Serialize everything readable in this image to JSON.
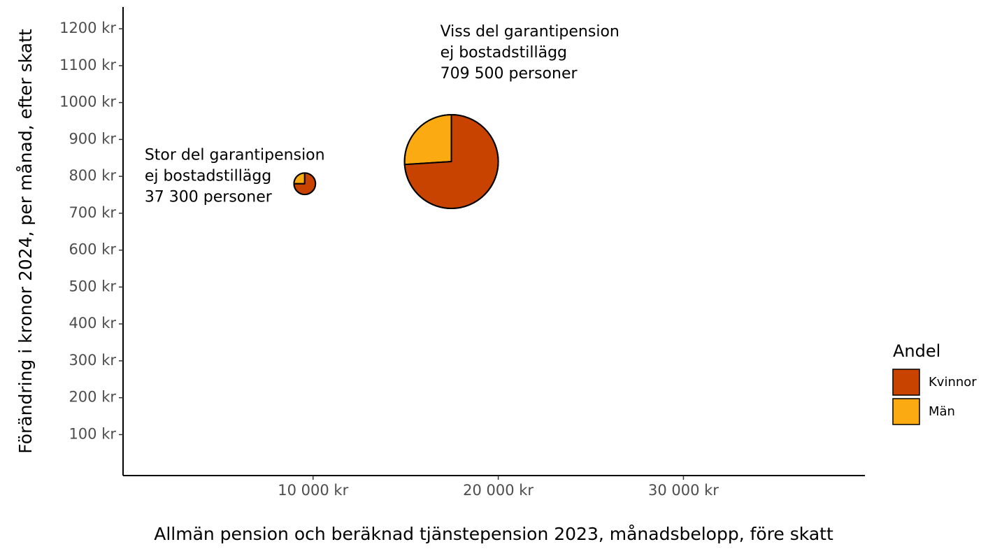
{
  "chart_data": {
    "type": "scatter",
    "xlabel": "Allmän pension och beräknad tjänstepension 2023, månadsbelopp, före skatt",
    "ylabel": "Förändring i kronor 2024, per månad, efter skatt",
    "x": [
      9550,
      17470
    ],
    "y": [
      780,
      840
    ],
    "sizes": [
      37300,
      709500
    ],
    "size_labels": [
      "37 300 personer",
      "709 500 personer"
    ],
    "annotations": [
      [
        "Stor del garantipension",
        "ej bostadstillägg"
      ],
      [
        "Viss del garantipension",
        "ej bostadstillägg"
      ]
    ],
    "series": [
      {
        "name": "Kvinnor",
        "color": "#c84300",
        "values": [
          75,
          74
        ]
      },
      {
        "name": "Män",
        "color": "#fcaa12",
        "values": [
          25,
          26
        ]
      }
    ],
    "legend_title": "Andel",
    "legend": "right",
    "xlim": [
      -260,
      39800
    ],
    "ylim": [
      -11,
      1259
    ],
    "xticks": [
      {
        "value": 10000,
        "label": "10 000 kr"
      },
      {
        "value": 20000,
        "label": "20 000 kr"
      },
      {
        "value": 30000,
        "label": "30 000 kr"
      }
    ],
    "yticks": [
      {
        "value": 100,
        "label": "100 kr"
      },
      {
        "value": 200,
        "label": "200 kr"
      },
      {
        "value": 300,
        "label": "300 kr"
      },
      {
        "value": 400,
        "label": "400 kr"
      },
      {
        "value": 500,
        "label": "500 kr"
      },
      {
        "value": 600,
        "label": "600 kr"
      },
      {
        "value": 700,
        "label": "700 kr"
      },
      {
        "value": 800,
        "label": "800 kr"
      },
      {
        "value": 900,
        "label": "900 kr"
      },
      {
        "value": 1000,
        "label": "1000 kr"
      },
      {
        "value": 1100,
        "label": "1100 kr"
      },
      {
        "value": 1200,
        "label": "1200 kr"
      }
    ],
    "grid": false
  }
}
